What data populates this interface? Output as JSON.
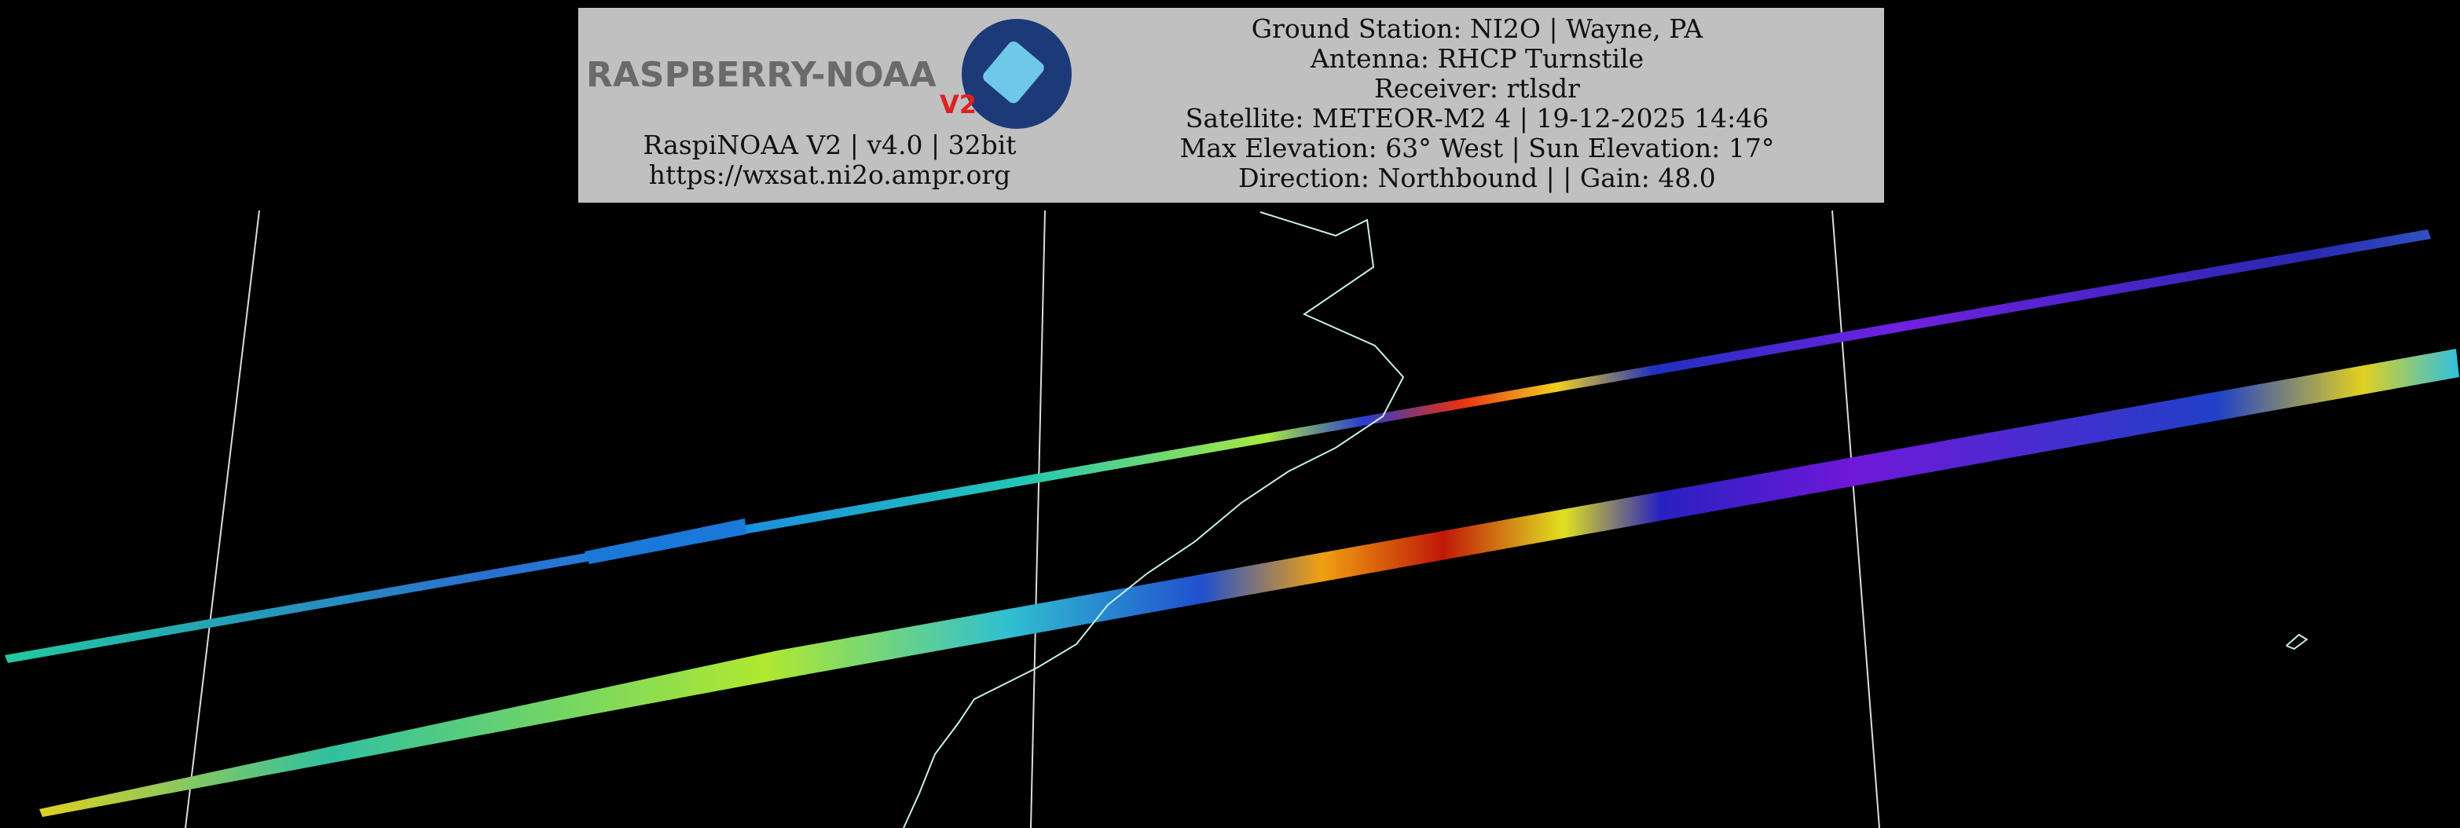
{
  "header": {
    "logo": {
      "title": "RASPBERRY-NOAA",
      "badge": "V2"
    },
    "software": "RaspiNOAA V2 | v4.0 | 32bit",
    "url": "https://wxsat.ni2o.ampr.org",
    "details": [
      "Ground Station: NI2O | Wayne, PA",
      "Antenna: RHCP Turnstile",
      "Receiver: rtlsdr",
      "Satellite: METEOR-M2 4 | 19-12-2025 14:46",
      "Max Elevation: 63° West | Sun Elevation: 17°",
      "Direction: Northbound | | Gain: 48.0"
    ]
  }
}
